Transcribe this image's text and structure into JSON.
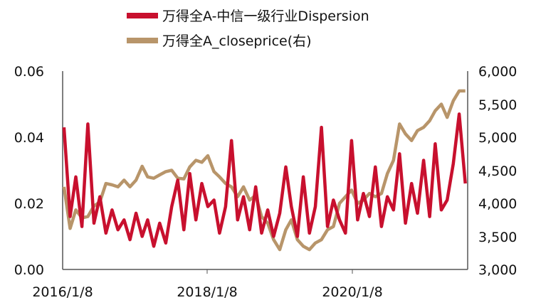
{
  "chart_data": {
    "type": "line",
    "legend": {
      "placement": "top-center",
      "entries": [
        {
          "label": "万得全A-中信一级行业Dispersion",
          "color": "#c8102e"
        },
        {
          "label": "万得全A_closeprice(右)",
          "color": "#b8956a"
        }
      ]
    },
    "x_tick_labels": [
      "2016/1/8",
      "2018/1/8",
      "2020/1/8"
    ],
    "y_left": {
      "range": [
        0,
        0.06
      ],
      "ticks": [
        "0.00",
        "0.02",
        "0.04",
        "0.06"
      ]
    },
    "y_right": {
      "range": [
        3000,
        6000
      ],
      "ticks": [
        "3,000",
        "3,500",
        "4,000",
        "4,500",
        "5,000",
        "5,500",
        "6,000"
      ]
    },
    "x_range": [
      "2016-01-08",
      "2021-08-27"
    ],
    "series": [
      {
        "name": "万得全A-中信一级行业Dispersion",
        "axis": "left",
        "color": "#c8102e",
        "x": [
          "2016-01",
          "2016-02",
          "2016-03",
          "2016-04",
          "2016-05",
          "2016-06",
          "2016-07",
          "2016-08",
          "2016-09",
          "2016-10",
          "2016-11",
          "2016-12",
          "2017-01",
          "2017-02",
          "2017-03",
          "2017-04",
          "2017-05",
          "2017-06",
          "2017-07",
          "2017-08",
          "2017-09",
          "2017-10",
          "2017-11",
          "2017-12",
          "2018-01",
          "2018-02",
          "2018-03",
          "2018-04",
          "2018-05",
          "2018-06",
          "2018-07",
          "2018-08",
          "2018-09",
          "2018-10",
          "2018-11",
          "2018-12",
          "2019-01",
          "2019-02",
          "2019-03",
          "2019-04",
          "2019-05",
          "2019-06",
          "2019-07",
          "2019-08",
          "2019-09",
          "2019-10",
          "2019-11",
          "2019-12",
          "2020-01",
          "2020-02",
          "2020-03",
          "2020-04",
          "2020-05",
          "2020-06",
          "2020-07",
          "2020-08",
          "2020-09",
          "2020-10",
          "2020-11",
          "2020-12",
          "2021-01",
          "2021-02",
          "2021-03",
          "2021-04",
          "2021-05",
          "2021-06",
          "2021-07",
          "2021-08"
        ],
        "values": [
          0.043,
          0.016,
          0.028,
          0.013,
          0.044,
          0.014,
          0.022,
          0.011,
          0.018,
          0.012,
          0.015,
          0.009,
          0.017,
          0.01,
          0.015,
          0.007,
          0.014,
          0.008,
          0.019,
          0.027,
          0.012,
          0.029,
          0.015,
          0.026,
          0.019,
          0.021,
          0.011,
          0.019,
          0.039,
          0.015,
          0.022,
          0.012,
          0.025,
          0.011,
          0.018,
          0.01,
          0.017,
          0.031,
          0.019,
          0.01,
          0.028,
          0.011,
          0.019,
          0.043,
          0.013,
          0.021,
          0.015,
          0.011,
          0.039,
          0.015,
          0.023,
          0.016,
          0.031,
          0.013,
          0.022,
          0.018,
          0.035,
          0.014,
          0.026,
          0.017,
          0.033,
          0.016,
          0.038,
          0.018,
          0.021,
          0.032,
          0.047,
          0.026
        ]
      },
      {
        "name": "万得全A_closeprice(右)",
        "axis": "right",
        "color": "#b8956a",
        "x": [
          "2016-01",
          "2016-02",
          "2016-03",
          "2016-04",
          "2016-05",
          "2016-06",
          "2016-07",
          "2016-08",
          "2016-09",
          "2016-10",
          "2016-11",
          "2016-12",
          "2017-01",
          "2017-02",
          "2017-03",
          "2017-04",
          "2017-05",
          "2017-06",
          "2017-07",
          "2017-08",
          "2017-09",
          "2017-10",
          "2017-11",
          "2017-12",
          "2018-01",
          "2018-02",
          "2018-03",
          "2018-04",
          "2018-05",
          "2018-06",
          "2018-07",
          "2018-08",
          "2018-09",
          "2018-10",
          "2018-11",
          "2018-12",
          "2019-01",
          "2019-02",
          "2019-03",
          "2019-04",
          "2019-05",
          "2019-06",
          "2019-07",
          "2019-08",
          "2019-09",
          "2019-10",
          "2019-11",
          "2019-12",
          "2020-01",
          "2020-02",
          "2020-03",
          "2020-04",
          "2020-05",
          "2020-06",
          "2020-07",
          "2020-08",
          "2020-09",
          "2020-10",
          "2020-11",
          "2020-12",
          "2021-01",
          "2021-02",
          "2021-03",
          "2021-04",
          "2021-05",
          "2021-06",
          "2021-07",
          "2021-08"
        ],
        "values": [
          4250,
          3620,
          3900,
          3780,
          3800,
          3960,
          4020,
          4300,
          4280,
          4250,
          4350,
          4250,
          4350,
          4560,
          4400,
          4380,
          4430,
          4480,
          4500,
          4380,
          4370,
          4550,
          4650,
          4620,
          4720,
          4480,
          4400,
          4300,
          4250,
          4100,
          4250,
          4050,
          4120,
          3800,
          3700,
          3450,
          3300,
          3600,
          3750,
          3450,
          3350,
          3300,
          3400,
          3450,
          3600,
          3650,
          4000,
          4100,
          4200,
          4000,
          4050,
          4150,
          4100,
          4150,
          4450,
          4650,
          5200,
          5050,
          4950,
          5100,
          5150,
          5250,
          5400,
          5500,
          5300,
          5550,
          5700,
          5700
        ]
      }
    ]
  }
}
